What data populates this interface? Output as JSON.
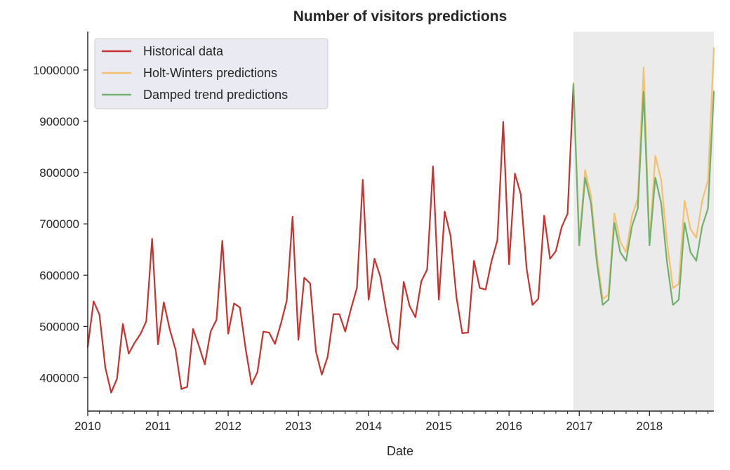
{
  "chart_data": {
    "type": "line",
    "title": "Number of  visitors predictions",
    "xlabel": "Date",
    "ylabel": "",
    "x_start": "2010-01",
    "xlim": [
      "2010-01",
      "2018-12"
    ],
    "ylim": [
      335000,
      1075000
    ],
    "x_ticks": [
      "2010",
      "2011",
      "2012",
      "2013",
      "2014",
      "2015",
      "2016",
      "2017",
      "2018"
    ],
    "y_ticks": [
      400000,
      500000,
      600000,
      700000,
      800000,
      900000,
      1000000
    ],
    "y_tick_labels": [
      "400000",
      "500000",
      "600000",
      "700000",
      "800000",
      "900000",
      "1000000"
    ],
    "shaded_region": {
      "from": "2016-12",
      "to": "2018-12",
      "color": "#ebebeb"
    },
    "legend_position": "top-left",
    "grid": false,
    "series": [
      {
        "name": "Historical data",
        "color": "#c8312e",
        "start": "2010-01",
        "values": [
          460000,
          549000,
          523000,
          420000,
          371000,
          398000,
          505000,
          447000,
          468000,
          485000,
          510000,
          671000,
          465000,
          547000,
          495000,
          455000,
          378000,
          382000,
          495000,
          462000,
          426000,
          490000,
          513000,
          667000,
          486000,
          545000,
          537000,
          455000,
          387000,
          411000,
          490000,
          488000,
          466000,
          505000,
          550000,
          714000,
          474000,
          595000,
          584000,
          451000,
          406000,
          441000,
          524000,
          524000,
          490000,
          535000,
          575000,
          786000,
          552000,
          632000,
          597000,
          530000,
          470000,
          455000,
          587000,
          540000,
          518000,
          588000,
          611000,
          812000,
          552000,
          724000,
          677000,
          558000,
          487000,
          488000,
          628000,
          575000,
          572000,
          627000,
          668000,
          899000,
          621000,
          798000,
          758000,
          613000,
          542000,
          554000,
          716000,
          632000,
          647000,
          694000,
          720000,
          970000
        ]
      },
      {
        "name": "Holt-Winters predictions",
        "color": "#f5c06e",
        "start": "2016-12",
        "values": [
          975000,
          665000,
          805000,
          755000,
          640000,
          553000,
          562000,
          720000,
          665000,
          645000,
          715000,
          750000,
          1005000,
          663000,
          833000,
          785000,
          665000,
          575000,
          583000,
          745000,
          690000,
          673000,
          745000,
          785000,
          1043000
        ]
      },
      {
        "name": "Damped trend predictions",
        "color": "#6fb06a",
        "start": "2016-12",
        "values": [
          972000,
          658000,
          790000,
          740000,
          625000,
          542000,
          552000,
          702000,
          645000,
          628000,
          695000,
          730000,
          958000,
          658000,
          790000,
          740000,
          625000,
          542000,
          552000,
          702000,
          645000,
          628000,
          695000,
          730000,
          958000
        ]
      }
    ]
  }
}
